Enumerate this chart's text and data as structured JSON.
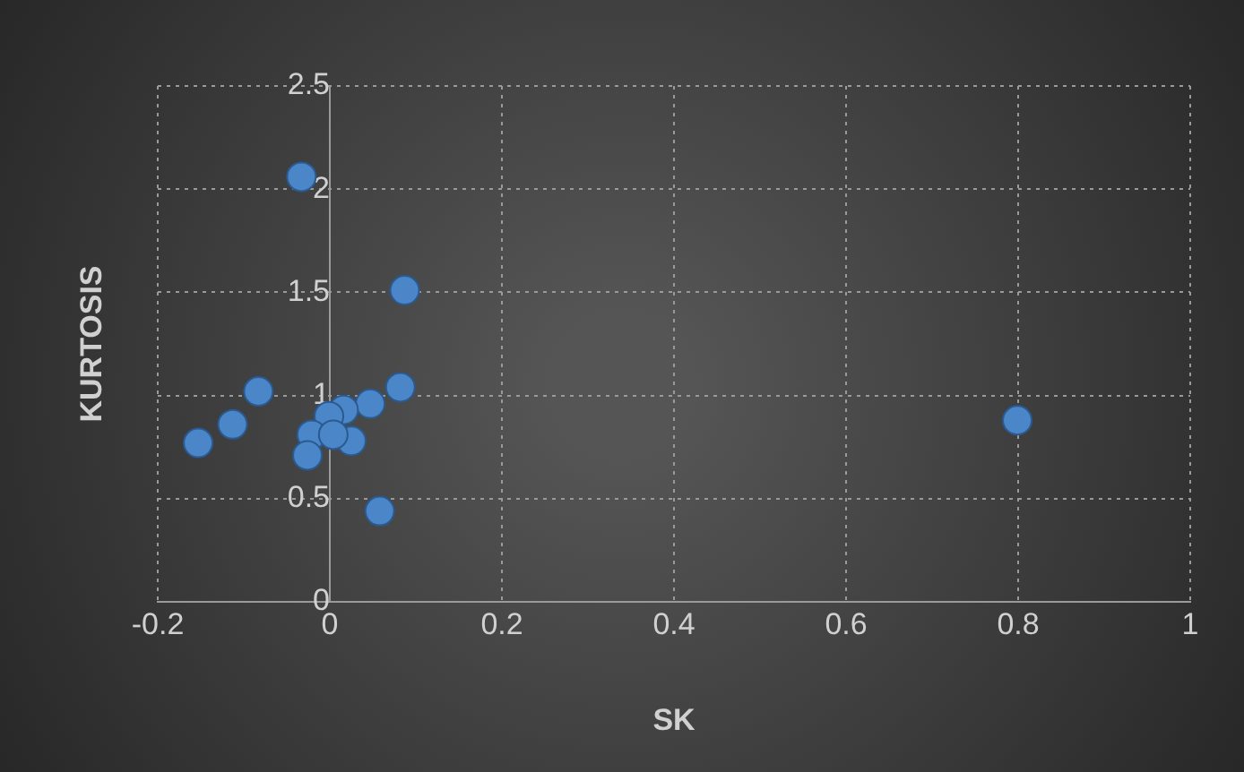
{
  "chart_data": {
    "type": "scatter",
    "xlabel": "SK",
    "ylabel": "KURTOSIS",
    "x": [
      -0.033,
      0.087,
      0.082,
      -0.083,
      -0.113,
      -0.153,
      0.047,
      0.016,
      -0.001,
      -0.021,
      -0.026,
      0.025,
      0.004,
      0.058,
      0.799
    ],
    "values": [
      2.06,
      1.51,
      1.04,
      1.02,
      0.86,
      0.77,
      0.96,
      0.93,
      0.9,
      0.81,
      0.71,
      0.78,
      0.81,
      0.44,
      0.88
    ],
    "color": "#4a86c8",
    "marker": "circle",
    "xlim": [
      -0.2,
      1
    ],
    "xticks": [
      -0.2,
      0,
      0.2,
      0.4,
      0.6,
      0.8,
      1
    ],
    "ylim": [
      0,
      2.5
    ],
    "yticks": [
      0,
      0.5,
      1,
      1.5,
      2,
      2.5
    ],
    "grid": true,
    "legend": false
  }
}
